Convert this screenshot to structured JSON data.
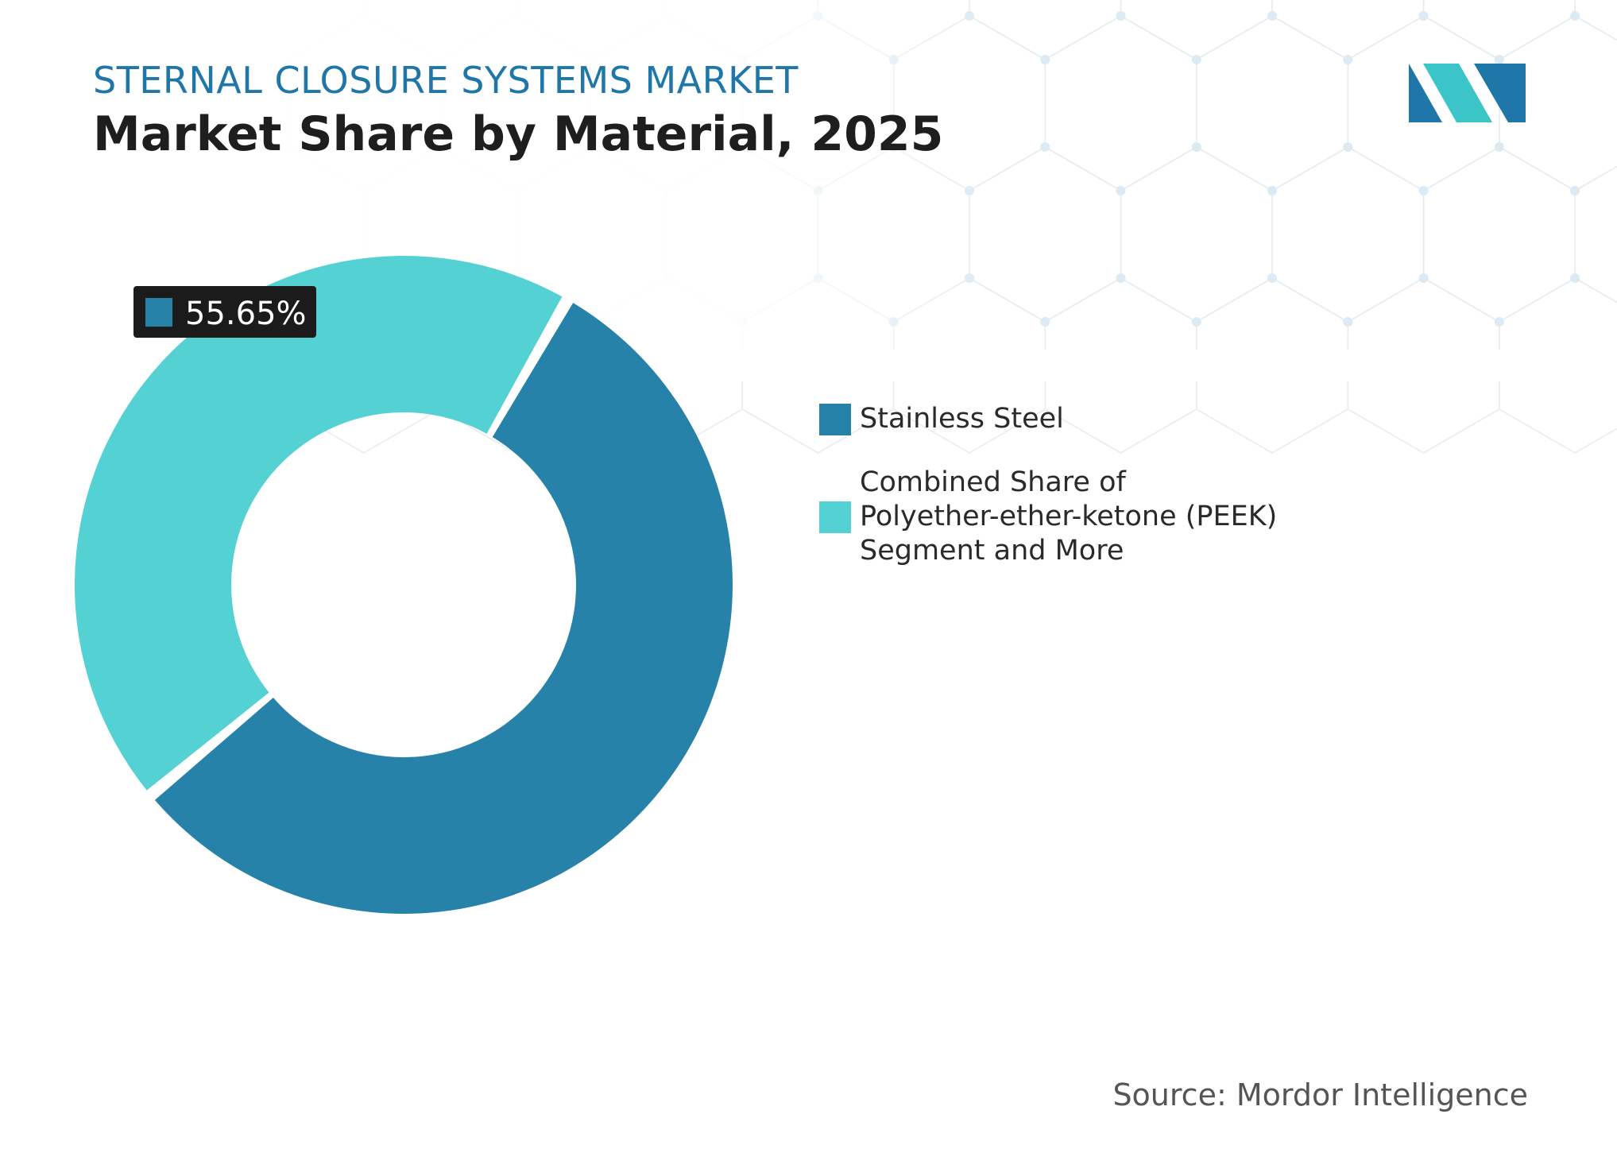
{
  "header": {
    "eyebrow": "STERNAL CLOSURE SYSTEMS MARKET",
    "title": "Market Share by Material, 2025"
  },
  "logo": {
    "name": "mordor-intelligence-logo",
    "colors": [
      "#1f76a8",
      "#3cc5c8"
    ]
  },
  "chart_data": {
    "type": "pie",
    "variant": "donut",
    "title": "Market Share by Material, 2025",
    "unit": "%",
    "series": [
      {
        "name": "Stainless Steel",
        "value": 55.65,
        "color": "#2682a9"
      },
      {
        "name": "Combined Share of Polyether-ether-ketone (PEEK) Segment and More",
        "value": 44.35,
        "color": "#53d1d3"
      }
    ],
    "labels": [
      {
        "series": "Stainless Steel",
        "text": "55.65%"
      }
    ],
    "legend": {
      "placement": "right",
      "items": [
        {
          "lines": [
            "Stainless Steel"
          ],
          "color": "#2682a9"
        },
        {
          "lines": [
            "Combined Share of",
            "Polyether-ether-ketone (PEEK)",
            "Segment and More"
          ],
          "color": "#53d1d3"
        }
      ]
    }
  },
  "footer": {
    "source": "Source: Mordor Intelligence"
  }
}
